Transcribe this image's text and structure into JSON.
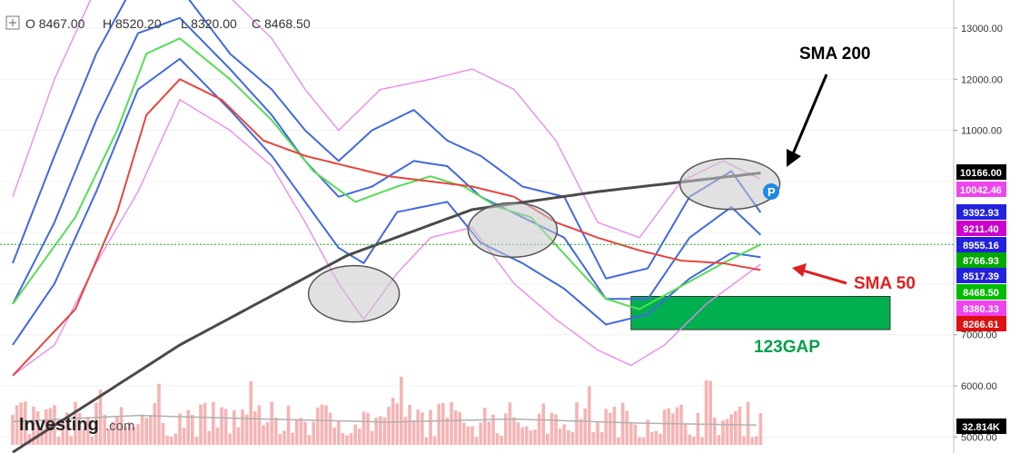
{
  "ohlc": {
    "open": "O 8467.00",
    "high": "H 8520.20",
    "low": "L 8320.00",
    "close": "C 8468.50"
  },
  "logo": {
    "brand": "Investing",
    "suffix": ".com"
  },
  "annotations": {
    "sma200_label": "SMA 200",
    "sma50_label": "SMA 50",
    "gap_label": "123GAP",
    "marker_letter": "P"
  },
  "colors": {
    "up": "#2e8b3a",
    "down": "#b22222",
    "sma200": "#4a4a4a",
    "sma50": "#e8453c",
    "blue_bands": "#4169e1",
    "pink_bands": "#ee82ee",
    "green_line": "#55dd55",
    "gap_box": "#00b050",
    "sma50_text": "#e02020",
    "gap_text": "#00a04a"
  },
  "price_badges": [
    {
      "label": "10166.00",
      "value": 10166,
      "color": "#000000"
    },
    {
      "label": "10042.46",
      "value": 10042.46,
      "color": "#ee44ee"
    },
    {
      "label": "9392.93",
      "value": 9392.93,
      "color": "#2222dd"
    },
    {
      "label": "9211.40",
      "value": 9211.4,
      "color": "#cc00cc"
    },
    {
      "label": "8955.16",
      "value": 8955.16,
      "color": "#2222dd"
    },
    {
      "label": "8766.93",
      "value": 8766.93,
      "color": "#00aa00"
    },
    {
      "label": "8517.39",
      "value": 8517.39,
      "color": "#2222dd"
    },
    {
      "label": "8468.50",
      "value": 8468.5,
      "color": "#00bb00"
    },
    {
      "label": "8380.33",
      "value": 8380.33,
      "color": "#ee44ee"
    },
    {
      "label": "8266.61",
      "value": 8266.61,
      "color": "#dd1111"
    },
    {
      "label": "32.814K",
      "value": 5200,
      "color": "#000000"
    }
  ],
  "chart_data": {
    "type": "candlestick",
    "yaxis": {
      "range": [
        5000,
        13500
      ],
      "ticks": [
        {
          "label": "13000.00",
          "value": 13000
        },
        {
          "label": "12000.00",
          "value": 12000
        },
        {
          "label": "11000.00",
          "value": 11000
        },
        {
          "label": "7000.00",
          "value": 7000
        },
        {
          "label": "6000.00",
          "value": 6000
        },
        {
          "label": "5000.00",
          "value": 5000
        }
      ]
    },
    "last_price": 8766.93,
    "price_series": [
      {
        "i": 0,
        "v": 8600
      },
      {
        "i": 5,
        "v": 9000
      },
      {
        "i": 10,
        "v": 9800
      },
      {
        "i": 15,
        "v": 10600
      },
      {
        "i": 20,
        "v": 11800
      },
      {
        "i": 25,
        "v": 12800
      },
      {
        "i": 30,
        "v": 13800
      },
      {
        "i": 40,
        "v": 13400
      },
      {
        "i": 48,
        "v": 12000
      },
      {
        "i": 56,
        "v": 12000
      },
      {
        "i": 62,
        "v": 11500
      },
      {
        "i": 68,
        "v": 10800
      },
      {
        "i": 74,
        "v": 9800
      },
      {
        "i": 78,
        "v": 8300
      },
      {
        "i": 81,
        "v": 7900
      },
      {
        "i": 84,
        "v": 8200
      },
      {
        "i": 88,
        "v": 9600
      },
      {
        "i": 92,
        "v": 11000
      },
      {
        "i": 96,
        "v": 11200
      },
      {
        "i": 100,
        "v": 9900
      },
      {
        "i": 104,
        "v": 10900
      },
      {
        "i": 107,
        "v": 11300
      },
      {
        "i": 111,
        "v": 10000
      },
      {
        "i": 115,
        "v": 9200
      },
      {
        "i": 118,
        "v": 8200
      },
      {
        "i": 122,
        "v": 8600
      },
      {
        "i": 126,
        "v": 8800
      },
      {
        "i": 130,
        "v": 8000
      },
      {
        "i": 134,
        "v": 7300
      },
      {
        "i": 138,
        "v": 7000
      },
      {
        "i": 142,
        "v": 6900
      },
      {
        "i": 146,
        "v": 7200
      },
      {
        "i": 150,
        "v": 8100
      },
      {
        "i": 154,
        "v": 8600
      },
      {
        "i": 158,
        "v": 9300
      },
      {
        "i": 162,
        "v": 9600
      },
      {
        "i": 166,
        "v": 9600
      },
      {
        "i": 170,
        "v": 9800
      },
      {
        "i": 174,
        "v": 9400
      },
      {
        "i": 177,
        "v": 8700
      },
      {
        "i": 179,
        "v": 8470
      }
    ],
    "sma200_points": [
      [
        0,
        4700
      ],
      [
        40,
        6800
      ],
      [
        80,
        8550
      ],
      [
        110,
        9450
      ],
      [
        140,
        9800
      ],
      [
        179,
        10166
      ]
    ],
    "sma50_points": [
      [
        0,
        6200
      ],
      [
        15,
        7500
      ],
      [
        25,
        9400
      ],
      [
        32,
        11300
      ],
      [
        40,
        12000
      ],
      [
        50,
        11600
      ],
      [
        60,
        10800
      ],
      [
        70,
        10500
      ],
      [
        80,
        10300
      ],
      [
        90,
        10100
      ],
      [
        100,
        10000
      ],
      [
        110,
        9900
      ],
      [
        120,
        9700
      ],
      [
        130,
        9200
      ],
      [
        140,
        8900
      ],
      [
        150,
        8650
      ],
      [
        160,
        8450
      ],
      [
        170,
        8400
      ],
      [
        179,
        8266.61
      ]
    ],
    "green_points": [
      [
        0,
        7600
      ],
      [
        15,
        9300
      ],
      [
        25,
        11000
      ],
      [
        32,
        12500
      ],
      [
        40,
        12800
      ],
      [
        52,
        12000
      ],
      [
        62,
        11200
      ],
      [
        72,
        10200
      ],
      [
        82,
        9600
      ],
      [
        92,
        9900
      ],
      [
        100,
        10100
      ],
      [
        108,
        9900
      ],
      [
        116,
        9500
      ],
      [
        124,
        9300
      ],
      [
        134,
        8400
      ],
      [
        142,
        7700
      ],
      [
        150,
        7500
      ],
      [
        160,
        7950
      ],
      [
        170,
        8400
      ],
      [
        179,
        8766.93
      ]
    ],
    "blue_upper_points": [
      [
        0,
        8400
      ],
      [
        10,
        10500
      ],
      [
        20,
        12500
      ],
      [
        30,
        14000
      ],
      [
        40,
        13800
      ],
      [
        52,
        12500
      ],
      [
        62,
        11800
      ],
      [
        70,
        11000
      ],
      [
        78,
        10400
      ],
      [
        86,
        11000
      ],
      [
        96,
        11400
      ],
      [
        104,
        10800
      ],
      [
        112,
        10500
      ],
      [
        122,
        9900
      ],
      [
        132,
        9700
      ],
      [
        142,
        8100
      ],
      [
        152,
        8300
      ],
      [
        162,
        9700
      ],
      [
        172,
        10200
      ],
      [
        179,
        9392.93
      ]
    ],
    "blue_mid_points": [
      [
        0,
        7600
      ],
      [
        10,
        9200
      ],
      [
        20,
        11200
      ],
      [
        30,
        12900
      ],
      [
        40,
        13200
      ],
      [
        52,
        12200
      ],
      [
        62,
        11300
      ],
      [
        70,
        10400
      ],
      [
        78,
        9700
      ],
      [
        86,
        9900
      ],
      [
        96,
        10400
      ],
      [
        104,
        10300
      ],
      [
        112,
        9700
      ],
      [
        122,
        9300
      ],
      [
        132,
        8900
      ],
      [
        142,
        7700
      ],
      [
        152,
        7700
      ],
      [
        162,
        8900
      ],
      [
        172,
        9500
      ],
      [
        179,
        8955.16
      ]
    ],
    "blue_lower_points": [
      [
        0,
        6800
      ],
      [
        10,
        8000
      ],
      [
        20,
        9800
      ],
      [
        30,
        11800
      ],
      [
        40,
        12400
      ],
      [
        52,
        11400
      ],
      [
        62,
        10500
      ],
      [
        70,
        9600
      ],
      [
        78,
        8700
      ],
      [
        84,
        8400
      ],
      [
        92,
        9400
      ],
      [
        104,
        9600
      ],
      [
        112,
        8800
      ],
      [
        122,
        8400
      ],
      [
        132,
        7900
      ],
      [
        142,
        7200
      ],
      [
        152,
        7400
      ],
      [
        162,
        8100
      ],
      [
        172,
        8600
      ],
      [
        179,
        8517.39
      ]
    ],
    "pink_upper_points": [
      [
        0,
        9700
      ],
      [
        10,
        12000
      ],
      [
        20,
        13800
      ],
      [
        40,
        14200
      ],
      [
        52,
        13600
      ],
      [
        62,
        12800
      ],
      [
        70,
        11800
      ],
      [
        78,
        11000
      ],
      [
        88,
        11800
      ],
      [
        100,
        12000
      ],
      [
        110,
        12200
      ],
      [
        120,
        11800
      ],
      [
        130,
        10800
      ],
      [
        140,
        9200
      ],
      [
        150,
        8900
      ],
      [
        160,
        10000
      ],
      [
        170,
        10400
      ],
      [
        179,
        10042.46
      ]
    ],
    "pink_lower_points": [
      [
        0,
        6200
      ],
      [
        10,
        6800
      ],
      [
        20,
        8400
      ],
      [
        30,
        9800
      ],
      [
        40,
        11600
      ],
      [
        52,
        11000
      ],
      [
        62,
        10300
      ],
      [
        70,
        9200
      ],
      [
        78,
        8000
      ],
      [
        84,
        7300
      ],
      [
        92,
        8200
      ],
      [
        100,
        8900
      ],
      [
        110,
        9100
      ],
      [
        120,
        8000
      ],
      [
        130,
        7300
      ],
      [
        140,
        6700
      ],
      [
        148,
        6400
      ],
      [
        156,
        6800
      ],
      [
        166,
        7600
      ],
      [
        179,
        8380.33
      ]
    ],
    "gap_zone": {
      "x_start": 148,
      "x_end": 210,
      "low": 7100,
      "high": 7750
    },
    "volume_avg_points": [
      [
        0,
        5300
      ],
      [
        30,
        5420
      ],
      [
        60,
        5350
      ],
      [
        90,
        5290
      ],
      [
        120,
        5350
      ],
      [
        150,
        5270
      ],
      [
        179,
        5230
      ]
    ]
  }
}
